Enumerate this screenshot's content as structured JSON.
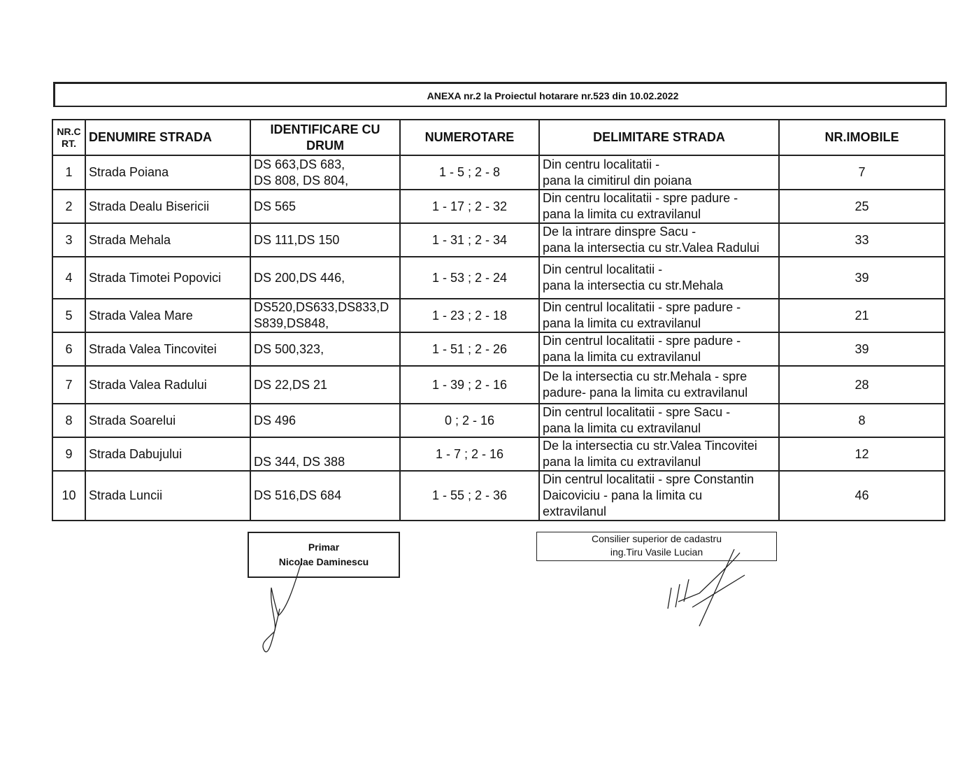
{
  "title": "ANEXA nr.2 la Proiectul hotarare nr.523 din 10.02.2022",
  "headers": [
    "NR.C RT.",
    "DENUMIRE STRADA",
    "IDENTIFICARE CU DRUM",
    "NUMEROTARE",
    "DELIMITARE STRADA",
    "NR.IMOBILE"
  ],
  "rows": [
    {
      "nr": "1",
      "strada": "Strada Poiana",
      "drum": [
        "DS 663,DS 683,",
        "DS 808,  DS 804,"
      ],
      "numerotare": "1 - 5 ; 2 - 8",
      "delimitare": [
        "Din centru localitatii -",
        "pana la cimitirul din poiana"
      ],
      "imobile": "7"
    },
    {
      "nr": "2",
      "strada": "Strada Dealu Bisericii",
      "drum": [
        "DS 565"
      ],
      "numerotare": "1 - 17 ; 2 - 32",
      "delimitare": [
        "Din centru localitatii -  spre padure -",
        "pana la limita cu extravilanul"
      ],
      "imobile": "25"
    },
    {
      "nr": "3",
      "strada": "Strada Mehala",
      "drum": [
        "DS 111,DS 150"
      ],
      "numerotare": "1 - 31 ; 2 - 34",
      "delimitare": [
        "De la intrare dinspre Sacu -",
        "pana la intersectia cu str.Valea Radului"
      ],
      "imobile": "33"
    },
    {
      "nr": "4",
      "strada": "Strada Timotei Popovici",
      "drum": [
        "DS 200,DS 446,"
      ],
      "numerotare": "1 - 53 ; 2 - 24",
      "delimitare": [
        "Din centrul localitatii -",
        "pana la intersectia cu str.Mehala"
      ],
      "imobile": "39"
    },
    {
      "nr": "5",
      "strada": "Strada Valea Mare",
      "drum": [
        "DS520,DS633,DS833,D",
        "S839,DS848,"
      ],
      "numerotare": "1 - 23 ; 2 - 18",
      "delimitare": [
        "Din centrul localitatii -   spre padure -",
        "pana la limita cu extravilanul"
      ],
      "imobile": "21"
    },
    {
      "nr": "6",
      "strada": "Strada Valea Tincovitei",
      "drum": [
        "DS 500,323,"
      ],
      "numerotare": "1 - 51 ; 2 - 26",
      "delimitare": [
        "Din centrul localitatii -  spre padure -",
        "pana la limita cu extravilanul"
      ],
      "imobile": "39"
    },
    {
      "nr": "7",
      "strada": "Strada Valea Radului",
      "drum": [
        "DS 22,DS 21"
      ],
      "numerotare": "1 - 39 ; 2 - 16",
      "delimitare": [
        "De la intersectia cu str.Mehala - spre",
        "padure-   pana la limita cu extravilanul"
      ],
      "imobile": "28"
    },
    {
      "nr": "8",
      "strada": "Strada Soarelui",
      "drum": [
        "DS 496"
      ],
      "numerotare": "0 ; 2 - 16",
      "delimitare": [
        "Din centrul localitatii - spre Sacu -",
        "pana la limita cu extravilanul"
      ],
      "imobile": "8"
    },
    {
      "nr": "9",
      "strada": "Strada Dabujului",
      "drum": [
        "DS 344, DS 388"
      ],
      "numerotare": "1 - 7 ; 2 - 16",
      "delimitare": [
        "De la intersectia cu str.Valea Tincovitei",
        "pana la limita cu extravilanul"
      ],
      "imobile": "12"
    },
    {
      "nr": "10",
      "strada": "Strada Luncii",
      "drum": [
        "DS 516,DS 684"
      ],
      "numerotare": "1 - 55 ; 2 - 36",
      "delimitare": [
        "Din centrul localitatii -  spre Constantin",
        "Daicoviciu -     pana la limita cu",
        "extravilanul"
      ],
      "imobile": "46"
    }
  ],
  "signatures": {
    "primar_title": "Primar",
    "primar_name": "Nicolae Daminescu",
    "consilier_title": "Consilier superior de cadastru",
    "consilier_name": "ing.Tiru Vasile Lucian"
  }
}
